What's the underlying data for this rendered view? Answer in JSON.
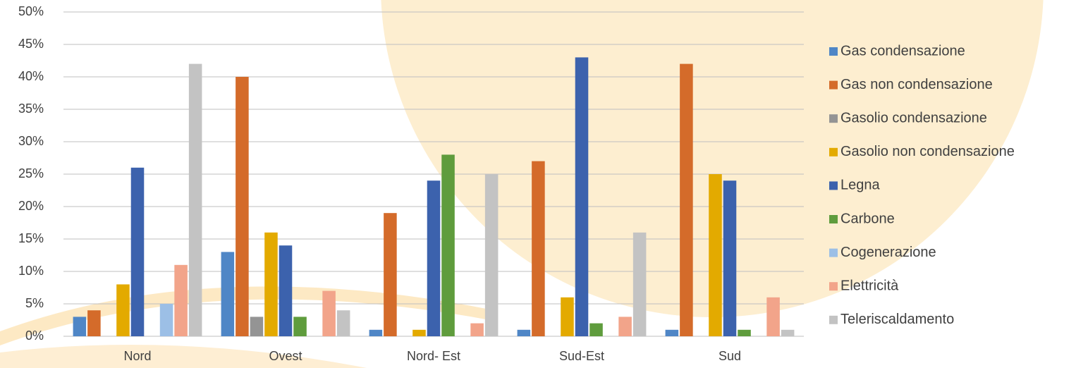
{
  "chart_data": {
    "type": "bar",
    "categories": [
      "Nord",
      "Ovest",
      "Nord- Est",
      "Sud-Est",
      "Sud"
    ],
    "series": [
      {
        "name": "Gas condensazione",
        "color": "#4f86c6",
        "values": [
          3,
          13,
          1,
          1,
          1
        ]
      },
      {
        "name": "Gas non condensazione",
        "color": "#d46b2a",
        "values": [
          4,
          40,
          19,
          27,
          42
        ]
      },
      {
        "name": "Gasolio condensazione",
        "color": "#949494",
        "values": [
          0,
          3,
          0,
          0,
          0
        ]
      },
      {
        "name": "Gasolio non condensazione",
        "color": "#e3aa00",
        "values": [
          8,
          16,
          1,
          6,
          25
        ]
      },
      {
        "name": "Legna",
        "color": "#3c62ad",
        "values": [
          26,
          14,
          24,
          43,
          24
        ]
      },
      {
        "name": "Carbone",
        "color": "#5f9c3d",
        "values": [
          0,
          3,
          28,
          2,
          1
        ]
      },
      {
        "name": "Cogenerazione",
        "color": "#9cbfe6",
        "values": [
          5,
          0,
          0,
          0,
          0
        ]
      },
      {
        "name": "Elettricità",
        "color": "#f2a48a",
        "values": [
          11,
          7,
          2,
          3,
          6
        ]
      },
      {
        "name": "Teleriscaldamento",
        "color": "#c3c3c3",
        "values": [
          42,
          4,
          25,
          16,
          1
        ]
      }
    ],
    "ylim": [
      0,
      50
    ],
    "yticks": [
      {
        "value": 0,
        "label": "0%"
      },
      {
        "value": 5,
        "label": "5%"
      },
      {
        "value": 10,
        "label": "10%"
      },
      {
        "value": 15,
        "label": "15%"
      },
      {
        "value": 20,
        "label": "20%"
      },
      {
        "value": 25,
        "label": "25%"
      },
      {
        "value": 30,
        "label": "30%"
      },
      {
        "value": 35,
        "label": "35%"
      },
      {
        "value": 40,
        "label": "40%"
      },
      {
        "value": 45,
        "label": "45%"
      },
      {
        "value": 50,
        "label": "50%"
      }
    ],
    "grid": true,
    "legend": "right"
  }
}
